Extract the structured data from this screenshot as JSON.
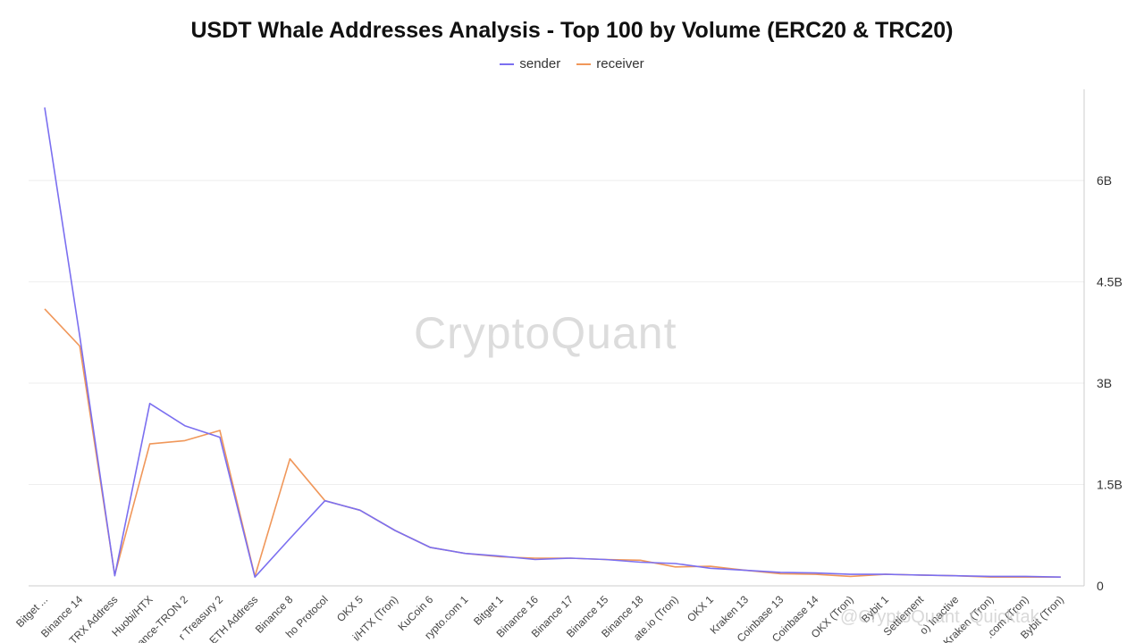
{
  "title": "USDT Whale Addresses Analysis - Top 100 by Volume (ERC20 & TRC20)",
  "watermark": "CryptoQuant",
  "footer_watermark": "@CryptoQuant_Quicktak",
  "colors": {
    "sender": "#7b6ff0",
    "receiver": "#f0975a",
    "grid": "#eeeeee",
    "axis": "#cccccc"
  },
  "chart_data": {
    "type": "line",
    "title": "USDT Whale Addresses Analysis - Top 100 by Volume (ERC20 & TRC20)",
    "legend_position": "top-center",
    "y_axis_side": "right",
    "ylim": [
      0,
      7350000000
    ],
    "yticks": [
      {
        "value": 0,
        "label": "0"
      },
      {
        "value": 1500000000,
        "label": "1.5B"
      },
      {
        "value": 3000000000,
        "label": "3B"
      },
      {
        "value": 4500000000,
        "label": "4.5B"
      },
      {
        "value": 6000000000,
        "label": "6B"
      }
    ],
    "x": [
      0,
      1,
      2,
      3,
      4,
      5,
      6,
      7,
      8,
      9,
      10,
      11,
      12,
      13,
      14,
      15,
      16,
      17,
      18,
      19,
      20,
      21,
      22,
      23,
      24,
      25,
      26,
      27,
      28,
      29
    ],
    "xticks": [
      {
        "x": 0,
        "label": "Bitget ..."
      },
      {
        "x": 1,
        "label": "Binance 14"
      },
      {
        "x": 2,
        "label": "TRX Address"
      },
      {
        "x": 3,
        "label": "Huobi/HTX"
      },
      {
        "x": 4,
        "label": "ance-TRON 2"
      },
      {
        "x": 5,
        "label": "r Treasury 2"
      },
      {
        "x": 6,
        "label": "ETH Address"
      },
      {
        "x": 7,
        "label": "Binance 8"
      },
      {
        "x": 8,
        "label": "ho Protocol"
      },
      {
        "x": 9,
        "label": "OKX 5"
      },
      {
        "x": 10,
        "label": "i/HTX (Tron)"
      },
      {
        "x": 11,
        "label": "KuCoin 6"
      },
      {
        "x": 12,
        "label": "rypto.com 1"
      },
      {
        "x": 13,
        "label": "Bitget 1"
      },
      {
        "x": 14,
        "label": "Binance 16"
      },
      {
        "x": 15,
        "label": "Binance 17"
      },
      {
        "x": 16,
        "label": "Binance 15"
      },
      {
        "x": 17,
        "label": "Binance 18"
      },
      {
        "x": 18,
        "label": "ate.io (Tron)"
      },
      {
        "x": 19,
        "label": "OKX 1"
      },
      {
        "x": 20,
        "label": "Kraken 13"
      },
      {
        "x": 21,
        "label": "Coinbase 13"
      },
      {
        "x": 22,
        "label": "Coinbase 14"
      },
      {
        "x": 23,
        "label": "OKX (Tron)"
      },
      {
        "x": 24,
        "label": "Bybit 1"
      },
      {
        "x": 25,
        "label": "Settlement"
      },
      {
        "x": 26,
        "label": "o) Inactive"
      },
      {
        "x": 27,
        "label": "Kraken (Tron)"
      },
      {
        "x": 28,
        "label": ".com (Tron)"
      },
      {
        "x": 29,
        "label": "Bybit (Tron)"
      }
    ],
    "series": [
      {
        "name": "sender",
        "values": [
          7080000000,
          3700000000,
          150000000,
          2700000000,
          2370000000,
          2200000000,
          130000000,
          700000000,
          1260000000,
          1120000000,
          820000000,
          570000000,
          480000000,
          440000000,
          390000000,
          410000000,
          390000000,
          350000000,
          330000000,
          260000000,
          230000000,
          200000000,
          190000000,
          170000000,
          170000000,
          160000000,
          150000000,
          140000000,
          140000000,
          130000000
        ]
      },
      {
        "name": "receiver",
        "values": [
          4100000000,
          3550000000,
          160000000,
          2100000000,
          2150000000,
          2300000000,
          140000000,
          1880000000,
          1260000000,
          1120000000,
          820000000,
          570000000,
          480000000,
          430000000,
          410000000,
          410000000,
          390000000,
          380000000,
          280000000,
          290000000,
          230000000,
          180000000,
          170000000,
          140000000,
          170000000,
          160000000,
          150000000,
          130000000,
          130000000,
          130000000
        ]
      }
    ]
  }
}
